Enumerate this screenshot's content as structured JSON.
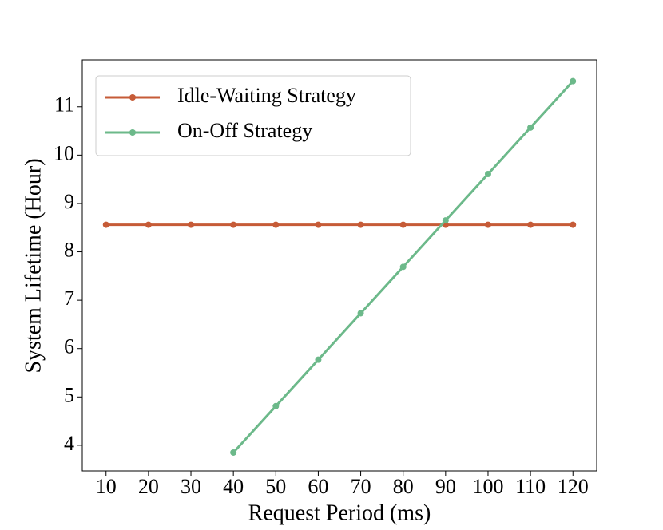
{
  "chart_data": {
    "type": "line",
    "xlabel": "Request Period (ms)",
    "ylabel": "System Lifetime (Hour)",
    "x": [
      10,
      20,
      30,
      40,
      50,
      60,
      70,
      80,
      90,
      100,
      110,
      120
    ],
    "series": [
      {
        "name": "Idle-Waiting Strategy",
        "color": "#c65b37",
        "values": [
          8.56,
          8.56,
          8.56,
          8.56,
          8.56,
          8.56,
          8.56,
          8.56,
          8.56,
          8.56,
          8.56,
          8.56
        ]
      },
      {
        "name": "On-Off Strategy",
        "color": "#6cb98a",
        "values": [
          null,
          null,
          null,
          3.85,
          4.81,
          5.77,
          6.73,
          7.69,
          8.65,
          9.61,
          10.57,
          11.53
        ]
      }
    ],
    "xlim": [
      4.4,
      125.6
    ],
    "ylim": [
      3.47,
      11.97
    ],
    "xticks": [
      10,
      20,
      30,
      40,
      50,
      60,
      70,
      80,
      90,
      100,
      110,
      120
    ],
    "yticks": [
      4,
      5,
      6,
      7,
      8,
      9,
      10,
      11
    ],
    "legend": "upper left"
  }
}
